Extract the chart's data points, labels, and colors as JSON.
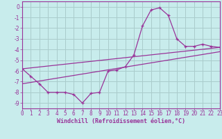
{
  "xlabel": "Windchill (Refroidissement éolien,°C)",
  "background_color": "#c8ecec",
  "grid_color": "#aacccc",
  "line_color": "#993399",
  "hours": [
    0,
    1,
    2,
    3,
    4,
    5,
    6,
    7,
    8,
    9,
    10,
    11,
    12,
    13,
    14,
    15,
    16,
    17,
    18,
    19,
    20,
    21,
    22,
    23
  ],
  "line_main": [
    -5.8,
    -6.5,
    -7.2,
    -8.0,
    -8.0,
    -8.0,
    -8.2,
    -9.0,
    -8.1,
    -8.0,
    -6.0,
    -5.9,
    -5.6,
    -4.5,
    -1.8,
    -0.3,
    -0.1,
    -0.8,
    -3.0,
    -3.7,
    -3.7,
    -3.5,
    -3.7,
    -3.8
  ],
  "ref_line1_x": [
    0,
    23
  ],
  "ref_line1_y": [
    -5.8,
    -3.8
  ],
  "ref_line2_x": [
    0,
    23
  ],
  "ref_line2_y": [
    -7.2,
    -4.2
  ],
  "xlim": [
    0,
    23
  ],
  "ylim": [
    -9.5,
    0.5
  ],
  "yticks": [
    0,
    -1,
    -2,
    -3,
    -4,
    -5,
    -6,
    -7,
    -8,
    -9
  ],
  "xticks": [
    0,
    1,
    2,
    3,
    4,
    5,
    6,
    7,
    8,
    9,
    10,
    11,
    12,
    13,
    14,
    15,
    16,
    17,
    18,
    19,
    20,
    21,
    22,
    23
  ],
  "tick_fontsize": 5.5,
  "xlabel_fontsize": 6.0
}
